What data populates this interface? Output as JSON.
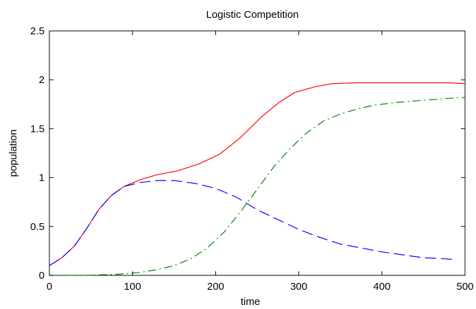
{
  "chart_data": {
    "type": "line",
    "title": "Logistic Competition",
    "xlabel": "time",
    "ylabel": "population",
    "xlim": [
      0,
      500
    ],
    "ylim": [
      0,
      2.5
    ],
    "xticks": [
      "0",
      "100",
      "200",
      "300",
      "400",
      "500"
    ],
    "yticks": [
      "0",
      "0.5",
      "1",
      "1.5",
      "2",
      "2.5"
    ],
    "grid": false,
    "series": [
      {
        "color": "#ff0000",
        "dash": "solid",
        "x": [
          0,
          15,
          30,
          45,
          60,
          75,
          90,
          110,
          130,
          155,
          180,
          205,
          230,
          255,
          275,
          295,
          320,
          340,
          370,
          400,
          430,
          460,
          480,
          500
        ],
        "y": [
          0.1,
          0.18,
          0.3,
          0.48,
          0.68,
          0.82,
          0.91,
          0.98,
          1.03,
          1.07,
          1.14,
          1.24,
          1.41,
          1.62,
          1.76,
          1.87,
          1.93,
          1.96,
          1.97,
          1.97,
          1.97,
          1.97,
          1.97,
          1.96
        ]
      },
      {
        "color": "#0000ff",
        "dash": "long-dash",
        "x": [
          0,
          15,
          30,
          45,
          60,
          75,
          90,
          110,
          130,
          150,
          175,
          200,
          225,
          250,
          275,
          300,
          325,
          350,
          375,
          400,
          425,
          450,
          475,
          490
        ],
        "y": [
          0.1,
          0.18,
          0.3,
          0.48,
          0.68,
          0.82,
          0.91,
          0.95,
          0.97,
          0.97,
          0.94,
          0.89,
          0.8,
          0.67,
          0.57,
          0.47,
          0.39,
          0.32,
          0.28,
          0.24,
          0.21,
          0.18,
          0.17,
          0.16
        ]
      },
      {
        "color": "#008000",
        "dash": "dash-dot",
        "x": [
          0,
          40,
          80,
          110,
          130,
          150,
          170,
          190,
          210,
          230,
          250,
          270,
          290,
          310,
          330,
          350,
          370,
          390,
          420,
          450,
          480,
          500
        ],
        "y": [
          0.0,
          0.0,
          0.01,
          0.03,
          0.06,
          0.1,
          0.17,
          0.28,
          0.44,
          0.65,
          0.88,
          1.11,
          1.3,
          1.46,
          1.58,
          1.65,
          1.7,
          1.74,
          1.77,
          1.79,
          1.81,
          1.82
        ]
      }
    ]
  }
}
